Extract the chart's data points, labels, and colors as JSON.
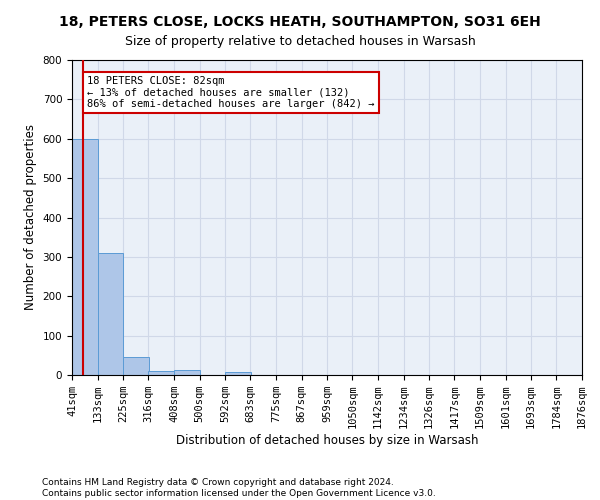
{
  "title": "18, PETERS CLOSE, LOCKS HEATH, SOUTHAMPTON, SO31 6EH",
  "subtitle": "Size of property relative to detached houses in Warsash",
  "xlabel": "Distribution of detached houses by size in Warsash",
  "ylabel": "Number of detached properties",
  "footer_line1": "Contains HM Land Registry data © Crown copyright and database right 2024.",
  "footer_line2": "Contains public sector information licensed under the Open Government Licence v3.0.",
  "annotation_line1": "18 PETERS CLOSE: 82sqm",
  "annotation_line2": "← 13% of detached houses are smaller (132)",
  "annotation_line3": "86% of semi-detached houses are larger (842) →",
  "property_size": 82,
  "bin_labels": [
    "41sqm",
    "133sqm",
    "225sqm",
    "316sqm",
    "408sqm",
    "500sqm",
    "592sqm",
    "683sqm",
    "775sqm",
    "867sqm",
    "959sqm",
    "1050sqm",
    "1142sqm",
    "1234sqm",
    "1326sqm",
    "1417sqm",
    "1509sqm",
    "1601sqm",
    "1693sqm",
    "1784sqm",
    "1876sqm"
  ],
  "bin_edges": [
    41,
    133,
    225,
    316,
    408,
    500,
    592,
    683,
    775,
    867,
    959,
    1050,
    1142,
    1234,
    1326,
    1417,
    1509,
    1601,
    1693,
    1784,
    1876
  ],
  "bar_heights": [
    600,
    310,
    45,
    10,
    13,
    0,
    8,
    0,
    0,
    0,
    0,
    0,
    0,
    0,
    0,
    0,
    0,
    0,
    0,
    0
  ],
  "bar_color": "#aec6e8",
  "bar_edge_color": "#5b9bd5",
  "vline_color": "#cc0000",
  "vline_x": 82,
  "ylim": [
    0,
    800
  ],
  "yticks": [
    0,
    100,
    200,
    300,
    400,
    500,
    600,
    700,
    800
  ],
  "grid_color": "#d0d8e8",
  "background_color": "#eaf0f8",
  "annotation_box_color": "#cc0000",
  "title_fontsize": 10,
  "subtitle_fontsize": 9,
  "axis_label_fontsize": 8.5,
  "tick_fontsize": 7.5,
  "footer_fontsize": 6.5
}
